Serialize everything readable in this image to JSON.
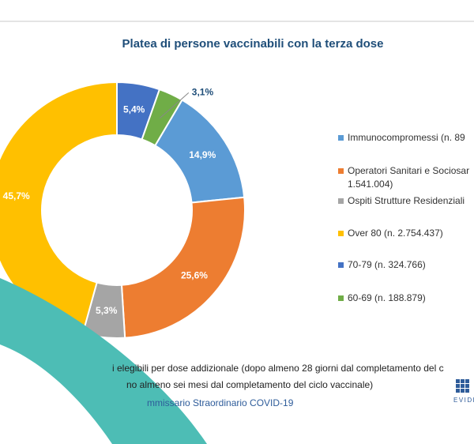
{
  "chart_data": {
    "type": "pie",
    "title": "Platea di persone vaccinabili con la terza dose",
    "categories": [
      "Immunocompromessi (n. 89",
      "Operatori Sanitari e Sociosar\n1.541.004)",
      "Ospiti Strutture Residenziali",
      "Over 80 (n. 2.754.437)",
      "70-79 (n. 324.766)",
      "60-69 (n. 188.879)"
    ],
    "values": [
      14.9,
      25.6,
      5.3,
      45.7,
      5.4,
      3.1
    ],
    "value_labels": [
      "14,9%",
      "25,6%",
      "5,3%",
      "45,7%",
      "5,4%",
      "3,1%"
    ],
    "colors": [
      "#5b9bd5",
      "#ed7d31",
      "#a5a5a5",
      "#ffc000",
      "#4472c4",
      "#70ad47"
    ],
    "legend": "right",
    "notes": [
      "i elegibili per dose addizionale (dopo almeno 28 giorni dal completamento del c",
      "no almeno sei mesi dal completamento del ciclo vaccinale)"
    ],
    "source": "mmissario Straordinario COVID-19"
  },
  "logo": "EVIDE"
}
